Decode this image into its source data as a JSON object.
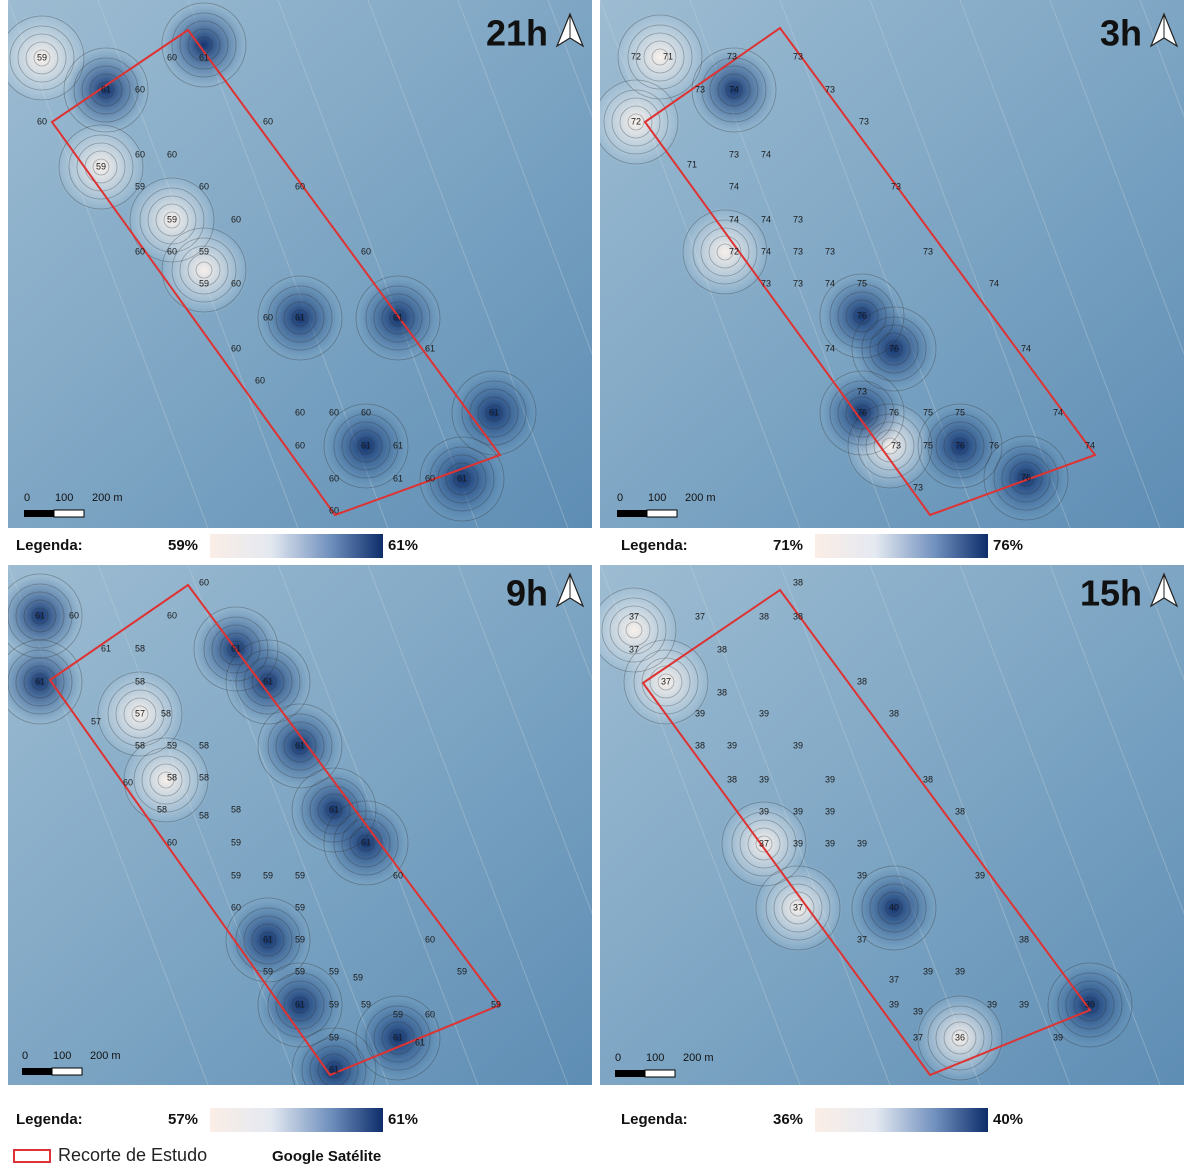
{
  "panels": [
    {
      "title": "21h",
      "scale_labels": [
        "0",
        "100",
        "200 m"
      ],
      "legend": {
        "label": "Legenda:",
        "min": "59%",
        "max": "61%"
      },
      "contour_labels": [
        "59",
        "60",
        "61",
        "61",
        "60",
        "60",
        "59",
        "60",
        "60",
        "59",
        "60",
        "59",
        "60",
        "60",
        "60",
        "59",
        "59",
        "60",
        "60",
        "60",
        "60",
        "61",
        "61",
        "61",
        "60",
        "60",
        "60",
        "60",
        "60",
        "60",
        "61",
        "60",
        "61",
        "61",
        "61",
        "60",
        "61",
        "60",
        "60"
      ]
    },
    {
      "title": "3h",
      "scale_labels": [
        "0",
        "100",
        "200 m"
      ],
      "legend": {
        "label": "Legenda:",
        "min": "71%",
        "max": "76%"
      },
      "contour_labels": [
        "72",
        "71",
        "73",
        "73",
        "73",
        "74",
        "73",
        "72",
        "73",
        "71",
        "73",
        "74",
        "74",
        "73",
        "74",
        "74",
        "73",
        "72",
        "74",
        "73",
        "73",
        "73",
        "73",
        "73",
        "74",
        "75",
        "74",
        "76",
        "76",
        "74",
        "74",
        "73",
        "76",
        "76",
        "75",
        "75",
        "74",
        "73",
        "75",
        "76",
        "76",
        "74",
        "73",
        "76"
      ]
    },
    {
      "title": "9h",
      "scale_labels": [
        "0",
        "100",
        "200 m"
      ],
      "legend": {
        "label": "Legenda:",
        "min": "57%",
        "max": "61%"
      },
      "contour_labels": [
        "61",
        "60",
        "60",
        "60",
        "61",
        "58",
        "61",
        "61",
        "61",
        "58",
        "57",
        "57",
        "58",
        "58",
        "59",
        "58",
        "61",
        "60",
        "58",
        "58",
        "58",
        "58",
        "58",
        "61",
        "61",
        "60",
        "59",
        "59",
        "59",
        "59",
        "60",
        "60",
        "59",
        "61",
        "59",
        "60",
        "59",
        "59",
        "59",
        "59",
        "59",
        "61",
        "59",
        "59",
        "59",
        "60",
        "59",
        "59",
        "61",
        "61",
        "61"
      ]
    },
    {
      "title": "15h",
      "scale_labels": [
        "0",
        "100",
        "200 m"
      ],
      "legend": {
        "label": "Legenda:",
        "min": "36%",
        "max": "40%"
      },
      "contour_labels": [
        "38",
        "37",
        "37",
        "38",
        "38",
        "37",
        "38",
        "37",
        "38",
        "38",
        "38",
        "39",
        "39",
        "38",
        "39",
        "39",
        "38",
        "39",
        "39",
        "38",
        "39",
        "39",
        "39",
        "38",
        "37",
        "39",
        "39",
        "39",
        "39",
        "39",
        "37",
        "40",
        "37",
        "38",
        "37",
        "39",
        "39",
        "39",
        "39",
        "39",
        "39",
        "39",
        "37",
        "36",
        "39"
      ]
    }
  ],
  "footer": {
    "study_area": "Recorte de Estudo",
    "basemap": "Google Satélite"
  }
}
